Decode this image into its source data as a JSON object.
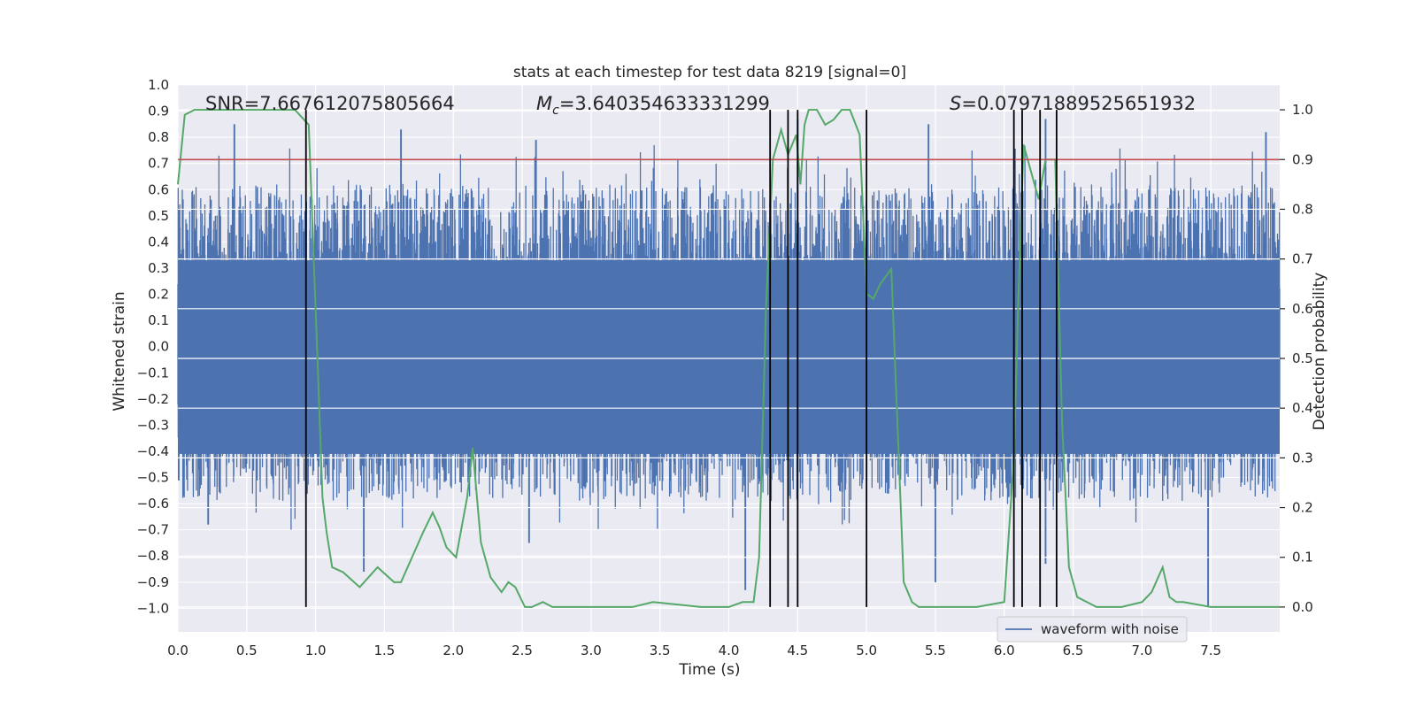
{
  "chart_data": {
    "type": "line",
    "title": "stats at each timestep for test data 8219 [signal=0]",
    "xlabel": "Time (s)",
    "ylabel": "Whitened strain",
    "y2label": "Detection probability",
    "xlim": [
      0,
      8
    ],
    "ylim": [
      -1.09,
      1.0
    ],
    "y2lim": [
      -0.05,
      1.05
    ],
    "x_ticks": [
      "0.0",
      "0.5",
      "1.0",
      "1.5",
      "2.0",
      "2.5",
      "3.0",
      "3.5",
      "4.0",
      "4.5",
      "5.0",
      "5.5",
      "6.0",
      "6.5",
      "7.0",
      "7.5"
    ],
    "y_ticks": [
      "1.0",
      "0.9",
      "0.8",
      "0.7",
      "0.6",
      "0.5",
      "0.4",
      "0.3",
      "0.2",
      "0.1",
      "0.0",
      "−0.1",
      "−0.2",
      "−0.3",
      "−0.4",
      "−0.5",
      "−0.6",
      "−0.7",
      "−0.8",
      "−0.9",
      "−1.0"
    ],
    "y2_ticks": [
      "1.0",
      "0.9",
      "0.8",
      "0.7",
      "0.6",
      "0.5",
      "0.4",
      "0.3",
      "0.2",
      "0.1",
      "0.0"
    ],
    "grid": true,
    "legend_position": "bottom-right",
    "annotations": {
      "snr": "SNR=7.667612075805664",
      "mc_prefix": "M",
      "mc_sub": "c",
      "mc_value": "=3.640354633331299",
      "s_prefix": "S",
      "s_value": "=0.07971889525651932"
    },
    "series": [
      {
        "name": "waveform with noise",
        "color": "#4c72b0",
        "axis": "left",
        "kind": "noisy-waveform",
        "envelope_typical": [
          -0.42,
          0.5
        ],
        "notable_peaks": [
          {
            "x": 0.41,
            "y": 0.85
          },
          {
            "x": 1.62,
            "y": 0.83
          },
          {
            "x": 2.6,
            "y": 0.79
          },
          {
            "x": 4.5,
            "y": 0.87
          },
          {
            "x": 5.45,
            "y": 0.85
          },
          {
            "x": 6.3,
            "y": 0.87
          },
          {
            "x": 7.9,
            "y": 0.82
          },
          {
            "x": 0.22,
            "y": -0.68
          },
          {
            "x": 1.35,
            "y": -0.86
          },
          {
            "x": 2.55,
            "y": -0.75
          },
          {
            "x": 4.12,
            "y": -0.93
          },
          {
            "x": 5.5,
            "y": -0.9
          },
          {
            "x": 7.48,
            "y": -0.99
          },
          {
            "x": 6.3,
            "y": -0.83
          }
        ]
      },
      {
        "name": "Detection probability",
        "color": "#55a868",
        "axis": "right",
        "x": [
          0,
          0.05,
          0.12,
          0.3,
          0.55,
          0.85,
          0.95,
          1.0,
          1.05,
          1.08,
          1.12,
          1.2,
          1.32,
          1.45,
          1.57,
          1.62,
          1.7,
          1.78,
          1.85,
          1.9,
          1.95,
          2.02,
          2.1,
          2.14,
          2.2,
          2.27,
          2.35,
          2.4,
          2.45,
          2.52,
          2.57,
          2.65,
          2.72,
          2.8,
          3.0,
          3.3,
          3.45,
          3.8,
          4.0,
          4.1,
          4.18,
          4.22,
          4.27,
          4.32,
          4.38,
          4.43,
          4.49,
          4.52,
          4.55,
          4.58,
          4.64,
          4.7,
          4.76,
          4.82,
          4.88,
          4.95,
          5.0,
          5.05,
          5.1,
          5.18,
          5.27,
          5.33,
          5.38,
          5.45,
          5.6,
          5.8,
          6.0,
          6.07,
          6.1,
          6.14,
          6.2,
          6.25,
          6.3,
          6.37,
          6.42,
          6.47,
          6.53,
          6.6,
          6.67,
          6.73,
          6.85,
          7.0,
          7.07,
          7.15,
          7.2,
          7.25,
          7.3,
          7.5,
          7.8,
          8.0
        ],
        "y": [
          0.85,
          0.99,
          1.0,
          1.0,
          1.0,
          1.0,
          0.97,
          0.6,
          0.22,
          0.15,
          0.08,
          0.07,
          0.04,
          0.08,
          0.05,
          0.05,
          0.1,
          0.15,
          0.19,
          0.16,
          0.12,
          0.1,
          0.22,
          0.32,
          0.13,
          0.06,
          0.03,
          0.05,
          0.04,
          0.0,
          0.0,
          0.01,
          0.0,
          0.0,
          0.0,
          0.0,
          0.01,
          0.0,
          0.0,
          0.01,
          0.01,
          0.1,
          0.6,
          0.9,
          0.96,
          0.91,
          0.95,
          0.85,
          0.97,
          1.0,
          1.0,
          0.97,
          0.98,
          1.0,
          1.0,
          0.95,
          0.63,
          0.62,
          0.65,
          0.68,
          0.05,
          0.01,
          0.0,
          0.0,
          0.0,
          0.0,
          0.01,
          0.3,
          0.6,
          0.93,
          0.87,
          0.82,
          0.9,
          0.9,
          0.37,
          0.08,
          0.02,
          0.01,
          0.0,
          0.0,
          0.0,
          0.01,
          0.03,
          0.08,
          0.02,
          0.01,
          0.01,
          0.0,
          0.0,
          0.0
        ]
      }
    ],
    "threshold": {
      "axis": "right",
      "y": 0.9,
      "color": "#c44e52"
    },
    "event_lines": [
      0.93,
      4.3,
      4.43,
      4.5,
      5.0,
      6.07,
      6.13,
      6.26,
      6.38
    ]
  }
}
